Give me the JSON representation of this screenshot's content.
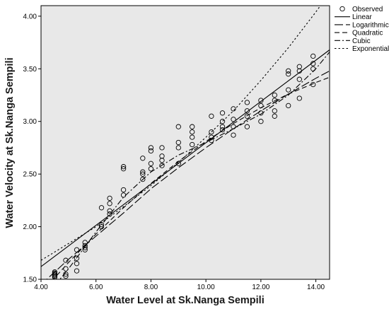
{
  "chart_data": {
    "type": "scatter",
    "title": "",
    "xlabel": "Water Level at Sk.Nanga Sempili",
    "ylabel": "Water Velocity at Sk.Nanga Sempili",
    "xlim": [
      4.0,
      14.5
    ],
    "ylim": [
      1.5,
      4.1
    ],
    "x_ticks": [
      "4.00",
      "6.00",
      "8.00",
      "10.00",
      "12.00",
      "14.00"
    ],
    "y_ticks": [
      "1.50",
      "2.00",
      "2.50",
      "3.00",
      "3.50",
      "4.00"
    ],
    "x_tick_values": [
      4,
      6,
      8,
      10,
      12,
      14
    ],
    "y_tick_values": [
      1.5,
      2.0,
      2.5,
      3.0,
      3.5,
      4.0
    ],
    "grid": false,
    "background": "#e8e8e8",
    "legend_position": "right",
    "legend": [
      "Observed",
      "Linear",
      "Logarithmic",
      "Quadratic",
      "Cubic",
      "Exponential"
    ],
    "observed": {
      "name": "Observed",
      "x": [
        4.5,
        4.5,
        4.5,
        4.5,
        4.5,
        4.5,
        4.9,
        4.9,
        4.9,
        4.9,
        5.3,
        5.3,
        5.3,
        5.3,
        5.6,
        5.6,
        5.6,
        5.6,
        6.2,
        6.2,
        6.2,
        6.5,
        6.5,
        6.5,
        6.5,
        7.0,
        7.0,
        7.0,
        7.0,
        7.7,
        7.7,
        7.7,
        7.7,
        8.0,
        8.0,
        8.0,
        8.0,
        8.4,
        8.4,
        8.4,
        8.4,
        9.0,
        9.0,
        9.0,
        9.0,
        9.5,
        9.5,
        9.5,
        9.5,
        10.2,
        10.2,
        10.2,
        10.2,
        10.6,
        10.6,
        10.6,
        10.6,
        11.0,
        11.0,
        11.0,
        11.0,
        11.5,
        11.5,
        11.5,
        11.5,
        12.0,
        12.0,
        12.0,
        12.0,
        12.5,
        12.5,
        12.5,
        12.5,
        13.0,
        13.0,
        13.0,
        13.0,
        13.4,
        13.4,
        13.4,
        13.4,
        13.9,
        13.9,
        13.9,
        13.9
      ],
      "y": [
        1.53,
        1.55,
        1.56,
        1.52,
        1.54,
        1.57,
        1.53,
        1.6,
        1.68,
        1.55,
        1.58,
        1.7,
        1.78,
        1.65,
        1.78,
        1.82,
        1.85,
        1.8,
        2.0,
        2.18,
        2.02,
        2.15,
        2.22,
        2.27,
        2.12,
        2.3,
        2.35,
        2.55,
        2.57,
        2.45,
        2.5,
        2.52,
        2.65,
        2.55,
        2.6,
        2.72,
        2.75,
        2.58,
        2.63,
        2.67,
        2.75,
        2.6,
        2.75,
        2.8,
        2.95,
        2.78,
        2.85,
        2.9,
        2.95,
        2.85,
        2.9,
        3.05,
        2.82,
        2.92,
        2.95,
        3.0,
        3.08,
        2.87,
        2.95,
        3.02,
        3.12,
        2.95,
        3.05,
        3.1,
        3.18,
        3.0,
        3.08,
        3.15,
        3.2,
        3.05,
        3.1,
        3.2,
        3.25,
        3.15,
        3.3,
        3.45,
        3.48,
        3.22,
        3.4,
        3.48,
        3.52,
        3.35,
        3.5,
        3.55,
        3.62
      ]
    },
    "fits": [
      {
        "name": "Linear",
        "style": "solid",
        "x": [
          4.0,
          14.5
        ],
        "y": [
          1.62,
          3.68
        ]
      },
      {
        "name": "Logarithmic",
        "style": "longdash",
        "x": [
          4.0,
          5.0,
          6.0,
          7.0,
          8.0,
          9.0,
          10.0,
          11.0,
          12.0,
          13.0,
          14.0,
          14.5
        ],
        "y": [
          1.45,
          1.69,
          1.91,
          2.13,
          2.36,
          2.56,
          2.75,
          2.93,
          3.1,
          3.26,
          3.41,
          3.48
        ]
      },
      {
        "name": "Quadratic",
        "style": "dash",
        "x": [
          4.0,
          5.0,
          6.0,
          7.0,
          8.0,
          9.0,
          10.0,
          11.0,
          12.0,
          13.0,
          14.0,
          14.5
        ],
        "y": [
          1.37,
          1.66,
          1.93,
          2.18,
          2.41,
          2.62,
          2.81,
          2.98,
          3.13,
          3.26,
          3.37,
          3.42
        ]
      },
      {
        "name": "Cubic",
        "style": "dashdot",
        "x": [
          4.0,
          5.0,
          6.0,
          7.0,
          8.0,
          9.0,
          10.0,
          11.0,
          12.0,
          13.0,
          14.0,
          14.5
        ],
        "y": [
          1.28,
          1.6,
          1.95,
          2.28,
          2.52,
          2.68,
          2.8,
          2.93,
          3.07,
          3.25,
          3.5,
          3.66
        ]
      },
      {
        "name": "Exponential",
        "style": "dotted",
        "x": [
          4.0,
          5.0,
          6.0,
          7.0,
          8.0,
          9.0,
          10.0,
          11.0,
          12.0,
          13.0,
          14.0,
          14.5
        ],
        "y": [
          1.68,
          1.84,
          2.0,
          2.19,
          2.39,
          2.61,
          2.85,
          3.1,
          3.39,
          3.7,
          4.04,
          4.22
        ]
      }
    ]
  }
}
